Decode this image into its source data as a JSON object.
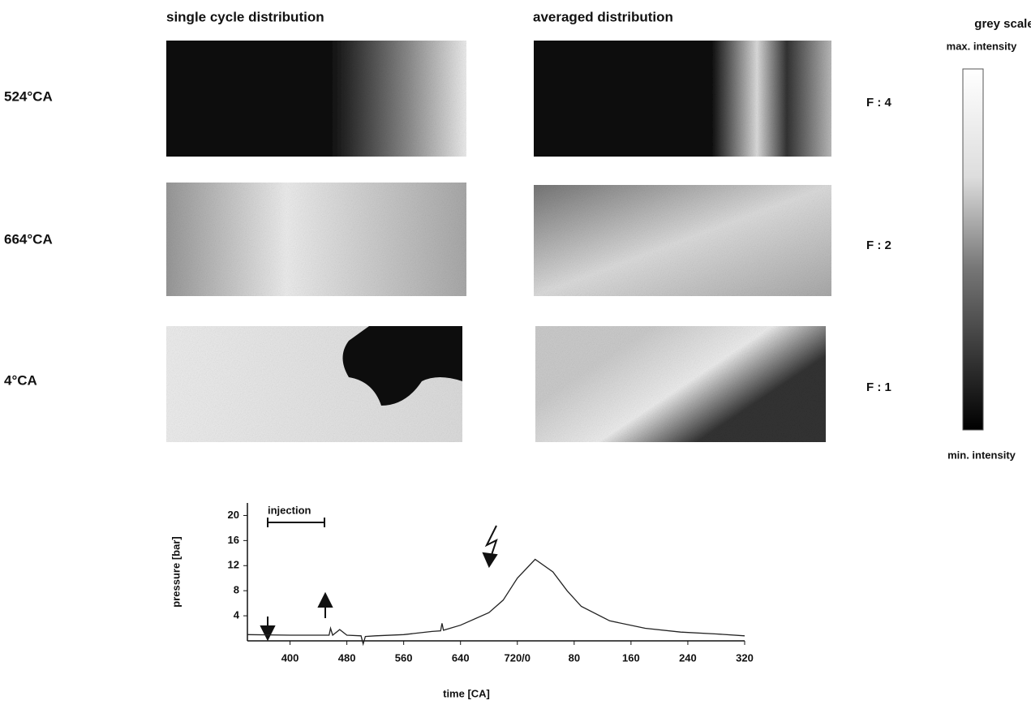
{
  "headers": {
    "single": "single cycle distribution",
    "averaged": "averaged distribution",
    "grey_scale": "grey scale"
  },
  "rows": [
    {
      "label": "524°CA",
      "factor": "F : 4"
    },
    {
      "label": "664°CA",
      "factor": "F : 2"
    },
    {
      "label": "4°CA",
      "factor": "F : 1"
    }
  ],
  "grey_scale": {
    "max": "max. intensity",
    "min": "min. intensity"
  },
  "chart_data": {
    "type": "line",
    "xlabel": "time [CA]",
    "ylabel": "pressure [bar]",
    "annotation": "injection",
    "color": "#222",
    "x": [
      340,
      400,
      455,
      457,
      460,
      470,
      480,
      500,
      503,
      506,
      520,
      560,
      600,
      612,
      614,
      616,
      640,
      680,
      700,
      720,
      745,
      770,
      790,
      810,
      850,
      900,
      950,
      1000,
      1040
    ],
    "values": [
      1,
      0.9,
      0.9,
      2,
      0.9,
      1.8,
      0.9,
      0.8,
      -0.5,
      0.7,
      0.8,
      1,
      1.5,
      1.6,
      2.8,
      1.7,
      2.5,
      4.5,
      6.5,
      10,
      13,
      11,
      8,
      5.5,
      3.2,
      2,
      1.4,
      1.1,
      0.8
    ],
    "xlim": [
      340,
      1040
    ],
    "ylim": [
      0,
      22
    ],
    "yticks": [
      4,
      8,
      12,
      16,
      20
    ],
    "xticks": [
      400,
      480,
      560,
      640,
      {
        "value": 720,
        "label": "720/0"
      },
      {
        "value": 800,
        "label": "80"
      },
      {
        "value": 880,
        "label": "160"
      },
      {
        "value": 960,
        "label": "240"
      },
      {
        "value": 1040,
        "label": "320"
      }
    ]
  }
}
